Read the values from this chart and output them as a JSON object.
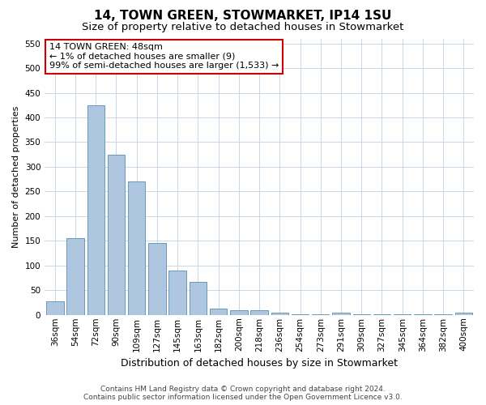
{
  "title": "14, TOWN GREEN, STOWMARKET, IP14 1SU",
  "subtitle": "Size of property relative to detached houses in Stowmarket",
  "xlabel": "Distribution of detached houses by size in Stowmarket",
  "ylabel": "Number of detached properties",
  "categories": [
    "36sqm",
    "54sqm",
    "72sqm",
    "90sqm",
    "109sqm",
    "127sqm",
    "145sqm",
    "163sqm",
    "182sqm",
    "200sqm",
    "218sqm",
    "236sqm",
    "254sqm",
    "273sqm",
    "291sqm",
    "309sqm",
    "327sqm",
    "345sqm",
    "364sqm",
    "382sqm",
    "400sqm"
  ],
  "values": [
    28,
    155,
    425,
    325,
    270,
    145,
    90,
    67,
    13,
    10,
    10,
    4,
    2,
    1,
    5,
    1,
    1,
    1,
    1,
    1,
    4
  ],
  "bar_color": "#aec6df",
  "bar_edge_color": "#6699bb",
  "highlight_bar_index": 1,
  "annotation_box_text": "14 TOWN GREEN: 48sqm\n← 1% of detached houses are smaller (9)\n99% of semi-detached houses are larger (1,533) →",
  "annotation_box_edge_color": "#cc0000",
  "ylim": [
    0,
    560
  ],
  "yticks": [
    0,
    50,
    100,
    150,
    200,
    250,
    300,
    350,
    400,
    450,
    500,
    550
  ],
  "background_color": "#ffffff",
  "grid_color": "#c8d8ea",
  "footer_line1": "Contains HM Land Registry data © Crown copyright and database right 2024.",
  "footer_line2": "Contains public sector information licensed under the Open Government Licence v3.0.",
  "title_fontsize": 11,
  "subtitle_fontsize": 9.5,
  "xlabel_fontsize": 9,
  "ylabel_fontsize": 8,
  "tick_fontsize": 7.5,
  "annotation_fontsize": 8,
  "footer_fontsize": 6.5
}
